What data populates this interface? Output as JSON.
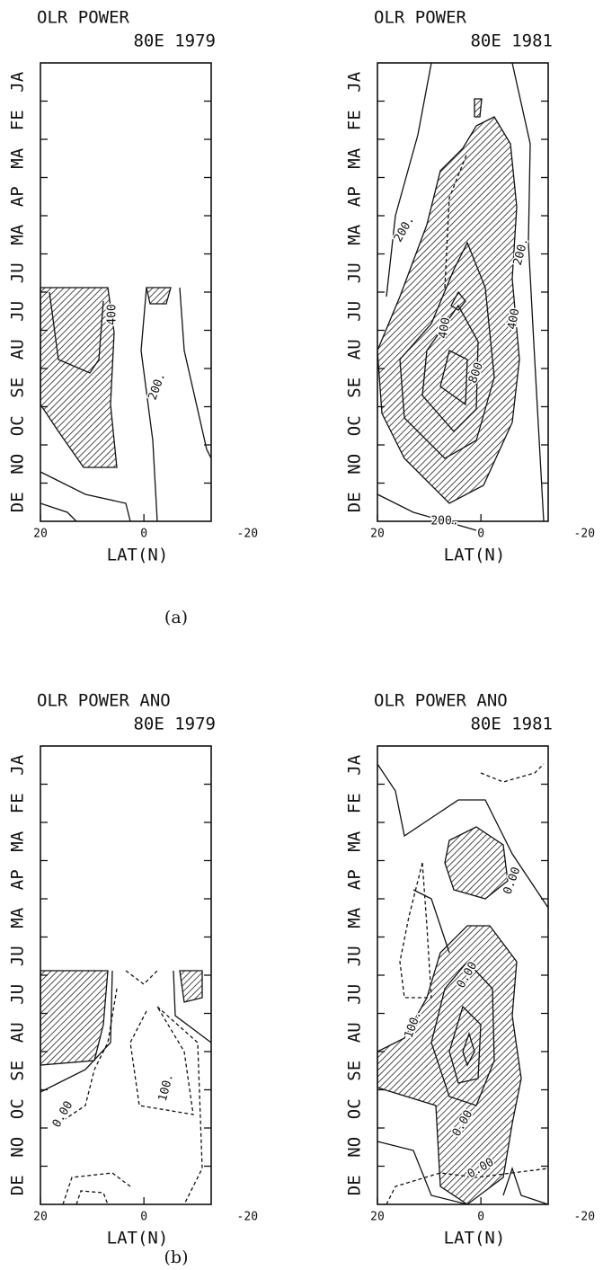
{
  "chart_data": [
    {
      "type": "contour",
      "title": "OLR POWER",
      "subtitle": "80E 1979",
      "xlabel": "LAT(N)",
      "xlim": [
        20,
        -13
      ],
      "xticks": [
        20,
        0,
        -20
      ],
      "categories": [
        "DE",
        "NO",
        "OC",
        "SE",
        "AU",
        "JU",
        "JU",
        "MA",
        "AP",
        "MA",
        "FE",
        "JA"
      ],
      "annotations": [
        "400",
        "200."
      ]
    },
    {
      "type": "contour",
      "title": "OLR POWER",
      "subtitle": "80E 1981",
      "xlabel": "LAT(N)",
      "xlim": [
        20,
        -13
      ],
      "xticks": [
        20,
        0,
        -20
      ],
      "categories": [
        "DE",
        "NO",
        "OC",
        "SE",
        "AU",
        "JU",
        "JU",
        "MA",
        "AP",
        "MA",
        "FE",
        "JA"
      ],
      "annotations": [
        "200.",
        "200.",
        "400",
        "400",
        "800",
        "200."
      ]
    },
    {
      "type": "contour",
      "title": "OLR POWER ANO",
      "subtitle": "80E 1979",
      "xlabel": "LAT(N)",
      "xlim": [
        20,
        -13
      ],
      "xticks": [
        20,
        0,
        -20
      ],
      "categories": [
        "DE",
        "NO",
        "OC",
        "SE",
        "AU",
        "JU",
        "JU",
        "MA",
        "AP",
        "MA",
        "FE",
        "JA"
      ],
      "annotations": [
        "0.00",
        "100."
      ]
    },
    {
      "type": "contour",
      "title": "OLR POWER ANO",
      "subtitle": "80E 1981",
      "xlabel": "LAT(N)",
      "xlim": [
        20,
        -13
      ],
      "xticks": [
        20,
        0,
        -20
      ],
      "categories": [
        "DE",
        "NO",
        "OC",
        "SE",
        "AU",
        "JU",
        "JU",
        "MA",
        "AP",
        "MA",
        "FE",
        "JA"
      ],
      "annotations": [
        "0.00",
        "100.",
        "0.00",
        "0.00",
        "0.00"
      ]
    }
  ],
  "captions": [
    "(a)",
    "(b)"
  ]
}
